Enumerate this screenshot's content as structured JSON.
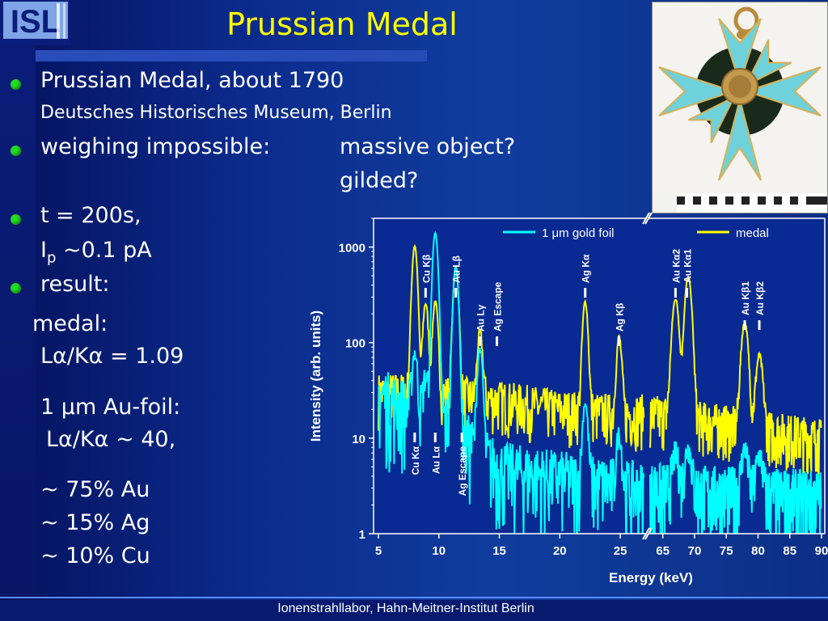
{
  "header": {
    "logo_text": "ISL",
    "title": "Prussian Medal"
  },
  "bullets": {
    "b1_line1": "Prussian Medal, about 1790",
    "b1_line2": "Deutsches Historisches Museum, Berlin",
    "b2_label": "weighing impossible:",
    "b2_q1": "massive object?",
    "b2_q2": "gilded?",
    "b3_line1": "t = 200s,",
    "b3_ip_main": "I",
    "b3_ip_sub": "p",
    "b3_ip_rest": " ~0.1 pA",
    "b4_label": "result:",
    "medal_label": "medal:",
    "medal_ratio": "Lα/Kα = 1.09",
    "foil_label": "1 μm Au-foil:",
    "foil_ratio": "Lα/Kα ~ 40,",
    "comp_au": "~ 75% Au",
    "comp_ag": "~ 15% Ag",
    "comp_cu": "~ 10% Cu"
  },
  "footer": {
    "text": "Ionenstrahllabor, Hahn-Meitner-Institut Berlin"
  },
  "colors": {
    "title": "#ffff00",
    "bullet": "#22dd22",
    "foil": "#00ffff",
    "medal": "#ffff00"
  },
  "chart_data": {
    "type": "line",
    "xlabel": "Energy (keV)",
    "ylabel": "Intensity (arb. units)",
    "yscale": "log",
    "ylim": [
      1,
      2000
    ],
    "yticks": [
      "1",
      "10",
      "100",
      "1000"
    ],
    "xticks_low": [
      "5",
      "10",
      "15",
      "20",
      "25"
    ],
    "xticks_high": [
      "65",
      "70",
      "75",
      "80",
      "85",
      "90"
    ],
    "axis_break": "between 27 and 63 keV",
    "legend_placement": "top",
    "series": [
      {
        "name": "1 μm gold foil",
        "color": "#00ffff",
        "baseline": [
          [
            5,
            30
          ],
          [
            8,
            20
          ],
          [
            11,
            15
          ],
          [
            13,
            8
          ],
          [
            15,
            5
          ],
          [
            20,
            4
          ],
          [
            27,
            3
          ],
          [
            63,
            3
          ],
          [
            90,
            2.5
          ]
        ],
        "peaks": [
          [
            8.0,
            60
          ],
          [
            8.9,
            25
          ],
          [
            9.7,
            1400
          ],
          [
            11.4,
            600
          ],
          [
            13.4,
            80
          ],
          [
            22.1,
            20
          ],
          [
            24.9,
            8
          ],
          [
            67,
            4
          ],
          [
            69,
            5
          ],
          [
            77.9,
            5
          ],
          [
            80.2,
            4
          ]
        ]
      },
      {
        "name": "medal",
        "color": "#ffff00",
        "baseline": [
          [
            5,
            30
          ],
          [
            8,
            30
          ],
          [
            11,
            28
          ],
          [
            15,
            25
          ],
          [
            20,
            20
          ],
          [
            25,
            18
          ],
          [
            27,
            18
          ],
          [
            63,
            18
          ],
          [
            90,
            10
          ]
        ],
        "peaks": [
          [
            8.0,
            1000
          ],
          [
            8.9,
            230
          ],
          [
            9.7,
            240
          ],
          [
            11.4,
            600
          ],
          [
            13.4,
            100
          ],
          [
            22.1,
            250
          ],
          [
            24.9,
            95
          ],
          [
            67,
            270
          ],
          [
            69,
            470
          ],
          [
            77.9,
            150
          ],
          [
            80.2,
            60
          ]
        ]
      }
    ],
    "annotations": [
      {
        "text": "Cu Kα",
        "x": 8.0,
        "side": "below"
      },
      {
        "text": "Cu Kβ",
        "x": 8.9,
        "side": "above"
      },
      {
        "text": "Au Lα",
        "x": 9.7,
        "side": "below"
      },
      {
        "text": "Au Lβ",
        "x": 11.4,
        "side": "above"
      },
      {
        "text": "Ag Escape",
        "x": 11.9,
        "side": "below"
      },
      {
        "text": "Au Lγ",
        "x": 13.4,
        "side": "above"
      },
      {
        "text": "Ag Escape",
        "x": 14.8,
        "side": "above"
      },
      {
        "text": "Ag Kα",
        "x": 22.1,
        "side": "above"
      },
      {
        "text": "Ag Kβ",
        "x": 24.9,
        "side": "above"
      },
      {
        "text": "Au Kα2",
        "x": 67.0,
        "side": "above"
      },
      {
        "text": "Au Kα1",
        "x": 68.8,
        "side": "above"
      },
      {
        "text": "Au Kβ1",
        "x": 77.9,
        "side": "above"
      },
      {
        "text": "Au Kβ2",
        "x": 80.2,
        "side": "above"
      }
    ]
  }
}
